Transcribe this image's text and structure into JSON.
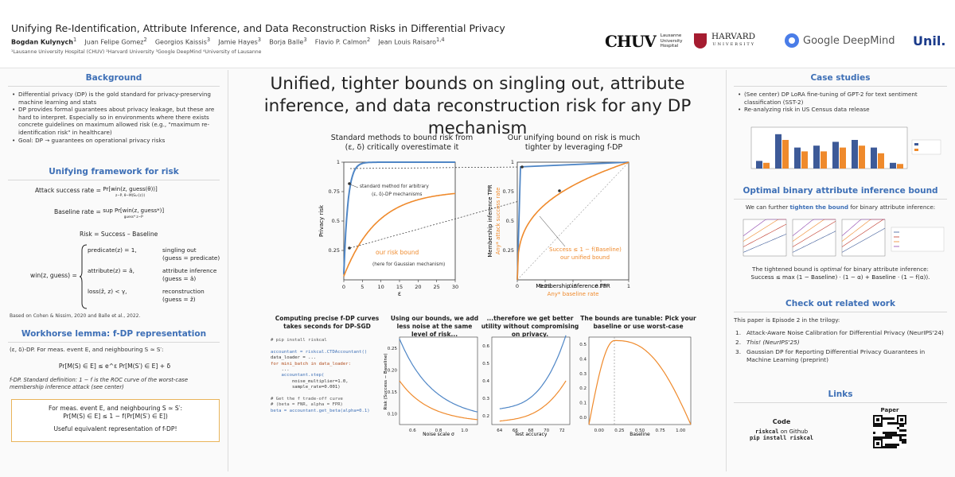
{
  "header": {
    "title": "Unifying Re-Identification, Attribute Inference, and Data Reconstruction Risks in Differential Privacy",
    "authors": [
      {
        "name": "Bogdan Kulynych",
        "sup": "1"
      },
      {
        "name": "Juan Felipe Gomez",
        "sup": "2"
      },
      {
        "name": "Georgios Kaissis",
        "sup": "3"
      },
      {
        "name": "Jamie Hayes",
        "sup": "3"
      },
      {
        "name": "Borja Balle",
        "sup": "3"
      },
      {
        "name": "Flavio P. Calmon",
        "sup": "2"
      },
      {
        "name": "Jean Louis Raisaro",
        "sup": "1,4"
      }
    ],
    "affiliations": "¹Lausanne University Hospital (CHUV)   ²Harvard University   ³Google DeepMind   ⁴University of Lausanne",
    "logos": {
      "chuv_mark": "CHUV",
      "chuv_text": "Lausanne\nUniversity\nHospital",
      "harvard": "HARVARD",
      "harvard_sub": "UNIVERSITY",
      "gdm": "Google DeepMind",
      "unil": "Unil."
    }
  },
  "left": {
    "background": {
      "heading": "Background",
      "bullets": [
        "Differential privacy (DP) is the gold standard for privacy-preserving machine learning and stats",
        "DP provides formal guarantees about privacy leakage, but these are hard to interpret. Especially so in environments where there exists concrete guidelines on maximum allowed risk (e.g., \"maximum re-identification risk\" in healthcare)",
        "Goal: DP → guarantees on operational privacy risks"
      ]
    },
    "framework": {
      "heading": "Unifying framework for risk",
      "attack_label": "Attack success rate =",
      "attack_expr": "Pr[win(z, guess(θ))]",
      "attack_sub": "z∼P, θ∼M(S∪{z})",
      "baseline_label": "Baseline rate =",
      "baseline_expr": "sup Pr[win(z, guess*)]",
      "baseline_sub": "guess*  z∼P",
      "risk": "Risk = Success – Baseline",
      "win_lhs": "win(z, guess) =",
      "cases": [
        {
          "cond": "predicate(z) = 1,",
          "desc": "singling out",
          "sub": "(guess = predicate)"
        },
        {
          "cond": "attribute(z) = â,",
          "desc": "attribute inference",
          "sub": "(guess = â)"
        },
        {
          "cond": "loss(ẑ, z) < γ,",
          "desc": "reconstruction",
          "sub": "(guess = ẑ)"
        }
      ],
      "citation": "Based on Cohen & Nissim, 2020 and Balle et al., 2022."
    },
    "lemma": {
      "heading": "Workhorse lemma: f-DP representation",
      "def1": "(ε, δ)-DP. For meas. event E, and neighbouring S ≃ S′:",
      "eq1": "Pr[M(S) ∈ E] ≤ e^ε Pr[M(S′) ∈ E] + δ",
      "def2": "f-DP. Standard definition: 1 − f is the ROC curve of the worst-case membership inference attack (see center)",
      "callout_line1": "For meas. event E, and neighbouring S ≃ S′:",
      "callout_eq": "Pr[M(S) ∈ E] ≤ 1 − f(Pr[M(S′) ∈ E])",
      "callout_line2": "Useful equivalent representation of f-DP!"
    }
  },
  "center": {
    "headline": "Unified, tighter bounds on singling out, attribute inference, and data reconstruction risk for any DP mechanism",
    "left_sub": "Standard methods to bound risk from (ε, δ) critically overestimate it",
    "right_sub": "Our unifying bound on risk is much tighter by leveraging f-DP",
    "plot1": {
      "ylabel": "Privacy risk",
      "xlabel": "ε",
      "annot1": "standard method for arbitrary",
      "annot2": "(ε, δ)-DP mechanisms",
      "our": "our risk bound",
      "our_sub": "(here for Gaussian mechanism)",
      "xticks": [
        "0",
        "5",
        "10",
        "15",
        "20",
        "25",
        "30"
      ],
      "yticks": [
        "0.25",
        "0.5",
        "0.75",
        "1"
      ]
    },
    "plot2": {
      "ylabel": "Membership inference TPR",
      "ylabel2": "Any* attack success rate",
      "xlabel": "Membership inference FPR",
      "xlabel2": "Any* baseline rate",
      "xticks": [
        "0",
        "0.25",
        "0.5",
        "0.75",
        "1"
      ],
      "yticks": [
        "0.25",
        "0.5",
        "0.75",
        "1"
      ],
      "eq": "Success ≤ 1 − f(Baseline)",
      "eq_sub": "our unified bound"
    },
    "bottom": {
      "caps": [
        "Computing precise f-DP curves takes seconds for DP-SGD",
        "Using our bounds, we add less noise at the same level of risk...",
        "...therefore we get better utility without compromising on privacy.",
        "The bounds are tunable: Pick your baseline or use worst-case"
      ],
      "code": [
        {
          "t": "# pip install riskcal",
          "c": "c"
        },
        {
          "t": "",
          "c": ""
        },
        {
          "t": "accountant = riskcal.CTDAccountant()",
          "c": "f"
        },
        {
          "t": "data_loader = ...",
          "c": ""
        },
        {
          "t": "for mini_batch in data_loader:",
          "c": "k"
        },
        {
          "t": "    ...",
          "c": ""
        },
        {
          "t": "    accountant.step(",
          "c": "f"
        },
        {
          "t": "        noise_multiplier=1.0,",
          "c": ""
        },
        {
          "t": "        sample_rate=0.001)",
          "c": ""
        },
        {
          "t": "",
          "c": ""
        },
        {
          "t": "# Get the f trade-off curve",
          "c": "c"
        },
        {
          "t": "# (beta = FNR, alpha = FPR)",
          "c": "c"
        },
        {
          "t": "beta = accountant.get_beta(alpha=0.1)",
          "c": "f"
        }
      ],
      "p3": {
        "ylabel": "Risk (Success − Baseline)",
        "xlabel": "Noise scale σ",
        "yticks": [
          "0.10",
          "0.15",
          "0.20",
          "0.25"
        ],
        "xticks": [
          "0.6",
          "0.8",
          "1.0"
        ]
      },
      "p4": {
        "xlabel": "Test accuracy",
        "yticks": [
          "0.2",
          "0.3",
          "0.4",
          "0.5",
          "0.6"
        ],
        "xticks": [
          "64",
          "66",
          "68",
          "70",
          "72"
        ]
      },
      "p5": {
        "xlabel": "Baseline",
        "yticks": [
          "0.0",
          "0.1",
          "0.2",
          "0.3",
          "0.4",
          "0.5"
        ],
        "xticks": [
          "0.00",
          "0.25",
          "0.50",
          "0.75",
          "1.00"
        ]
      }
    }
  },
  "right": {
    "case": {
      "heading": "Case studies",
      "bullets": [
        "(See center) DP LoRA fine-tuning of GPT-2 for text sentiment classification (SST-2)",
        "Re-analyzing risk in US Census data release"
      ]
    },
    "binary": {
      "heading": "Optimal binary attribute inference bound",
      "intro1": "We can further",
      "intro2": "tighten the bound",
      "intro3": "for binary attribute inference:",
      "text2a": "The tightened bound is",
      "text2b": "optimal",
      "text2c": "for binary attribute inference:",
      "eq": "Success ≤ max (1 − Baseline) · (1 − α) + Baseline · (1 − f(α))."
    },
    "related": {
      "heading": "Check out related work",
      "intro": "This paper is Episode 2 in the trilogy:",
      "items": [
        {
          "n": "1.",
          "t": "Attack-Aware Noise Calibration for Differential Privacy (NeurIPS'24)"
        },
        {
          "n": "2.",
          "t": "This! (NeurIPS'25)"
        },
        {
          "n": "3.",
          "t": "Gaussian DP for Reporting Differential Privacy Guarantees in Machine Learning (preprint)"
        }
      ]
    },
    "links": {
      "heading": "Links",
      "code": "Code",
      "repo1": "riskcal",
      "repo2": "on Github",
      "pip": "pip install riskcal",
      "paper": "Paper"
    }
  },
  "colors": {
    "accent": "#3d6fb6",
    "orange": "#ef8a2c"
  }
}
